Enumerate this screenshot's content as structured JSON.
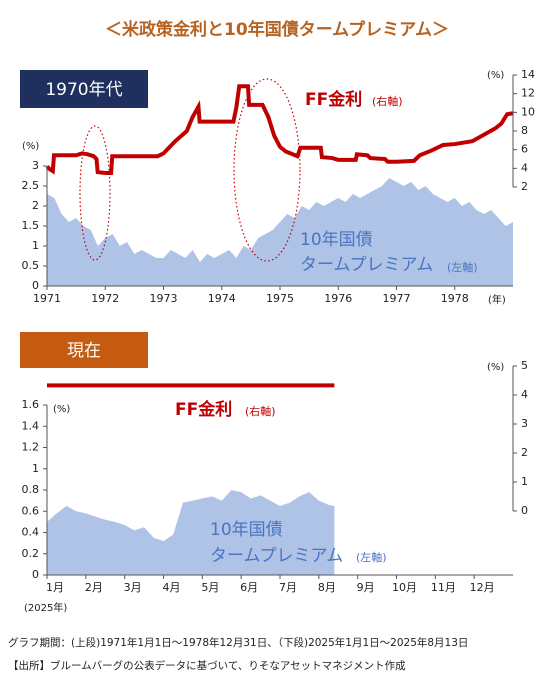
{
  "title": "＜米政策金利と10年国債タームプレミアム＞",
  "notes": [
    "グラフ期間：(上段)1971年1月1日～1978年12月31日、（下段)2025年1月1日～2025年8月13日",
    "【出所】ブルームバーグの公表データに基づいて、りそなアセットマネジメント作成"
  ],
  "chart_data": [
    {
      "type": "area_line",
      "label": "1970年代",
      "xlim": [
        1971,
        1979
      ],
      "xticks": [
        1971,
        1972,
        1973,
        1974,
        1975,
        1976,
        1977,
        1978
      ],
      "ylim": [
        0,
        3
      ],
      "yticks": [
        0,
        0.5,
        1,
        1.5,
        2,
        2.5,
        3
      ],
      "y2lim": [
        2,
        14
      ],
      "y2ticks": [
        2,
        4,
        6,
        8,
        10,
        12,
        14
      ],
      "annotations": [
        "FF金利",
        "(右軸)",
        "10年国債",
        "タームプレミアム",
        "(左軸)",
        "(%)",
        "(%)",
        "(年)"
      ],
      "series": [
        {
          "type": "area",
          "axis": "y",
          "color": "#aec3e6",
          "x": [
            1971,
            1971.125,
            1971.25,
            1971.375,
            1971.5,
            1971.625,
            1971.75,
            1971.875,
            1972,
            1972.125,
            1972.25,
            1972.375,
            1972.5,
            1972.625,
            1972.75,
            1972.875,
            1973,
            1973.125,
            1973.25,
            1973.375,
            1973.5,
            1973.625,
            1973.75,
            1973.875,
            1974,
            1974.125,
            1974.25,
            1974.375,
            1974.5,
            1974.625,
            1974.75,
            1974.875,
            1975,
            1975.125,
            1975.25,
            1975.375,
            1975.5,
            1975.625,
            1975.75,
            1975.875,
            1976,
            1976.125,
            1976.25,
            1976.375,
            1976.5,
            1976.625,
            1976.75,
            1976.875,
            1977,
            1977.125,
            1977.25,
            1977.375,
            1977.5,
            1977.625,
            1977.75,
            1977.875,
            1978,
            1978.125,
            1978.25,
            1978.375,
            1978.5,
            1978.625,
            1978.75,
            1978.875,
            1979
          ],
          "values": [
            2.3,
            2.2,
            1.8,
            1.6,
            1.7,
            1.5,
            1.4,
            1.0,
            1.2,
            1.3,
            1.0,
            1.1,
            0.8,
            0.9,
            0.8,
            0.7,
            0.7,
            0.9,
            0.8,
            0.7,
            0.9,
            0.6,
            0.8,
            0.7,
            0.8,
            0.9,
            0.7,
            1.0,
            0.9,
            1.2,
            1.3,
            1.4,
            1.6,
            1.8,
            1.7,
            2.0,
            1.9,
            2.1,
            2.0,
            2.1,
            2.2,
            2.1,
            2.3,
            2.2,
            2.3,
            2.4,
            2.5,
            2.7,
            2.6,
            2.5,
            2.6,
            2.4,
            2.5,
            2.3,
            2.2,
            2.1,
            2.2,
            2.0,
            2.1,
            1.9,
            1.8,
            1.9,
            1.7,
            1.5,
            1.6
          ]
        },
        {
          "type": "line",
          "axis": "y2",
          "color": "#c00000",
          "x": [
            1971,
            1971.05,
            1971.1,
            1971.12,
            1971.5,
            1971.6,
            1971.7,
            1971.8,
            1971.85,
            1971.87,
            1972,
            1972.1,
            1972.12,
            1972.9,
            1973,
            1973.2,
            1973.4,
            1973.5,
            1973.6,
            1973.62,
            1974.2,
            1974.25,
            1974.3,
            1974.45,
            1974.47,
            1974.7,
            1974.8,
            1974.9,
            1975,
            1975.1,
            1975.3,
            1975.35,
            1975.7,
            1975.72,
            1975.9,
            1976,
            1976.3,
            1976.32,
            1976.5,
            1976.55,
            1976.8,
            1976.85,
            1977,
            1977.3,
            1977.4,
            1977.6,
            1977.8,
            1978,
            1978.3,
            1978.5,
            1978.7,
            1978.8,
            1978.9,
            1979
          ],
          "values": [
            4.2,
            3.9,
            3.7,
            5.4,
            5.4,
            5.6,
            5.5,
            5.3,
            5.0,
            3.6,
            3.5,
            3.5,
            5.3,
            5.3,
            5.6,
            6.9,
            8.0,
            9.5,
            10.6,
            9.0,
            9.0,
            10.5,
            12.8,
            12.8,
            10.8,
            10.8,
            9.5,
            7.5,
            6.3,
            5.8,
            5.3,
            6.2,
            6.2,
            5.2,
            5.1,
            4.9,
            4.9,
            5.5,
            5.4,
            5.1,
            5.0,
            4.7,
            4.7,
            4.8,
            5.4,
            5.9,
            6.5,
            6.6,
            6.9,
            7.6,
            8.3,
            8.8,
            9.8,
            9.9
          ]
        }
      ]
    },
    {
      "type": "area_line",
      "label": "現在",
      "xlim": [
        1,
        13
      ],
      "xticks": [
        {
          "value": 1,
          "label": "1月"
        },
        {
          "value": 2,
          "label": "2月"
        },
        {
          "value": 3,
          "label": "3月"
        },
        {
          "value": 4,
          "label": "4月"
        },
        {
          "value": 5,
          "label": "5月"
        },
        {
          "value": 6,
          "label": "6月"
        },
        {
          "value": 7,
          "label": "7月"
        },
        {
          "value": 8,
          "label": "8月"
        },
        {
          "value": 9,
          "label": "9月"
        },
        {
          "value": 10,
          "label": "10月"
        },
        {
          "value": 11,
          "label": "11月"
        },
        {
          "value": 12,
          "label": "12月"
        }
      ],
      "ylim": [
        0,
        1.6
      ],
      "yticks": [
        0,
        0.2,
        0.4,
        0.6,
        0.8,
        1,
        1.2,
        1.4,
        1.6
      ],
      "y2lim": [
        0,
        5
      ],
      "y2ticks": [
        0,
        1,
        2,
        3,
        4,
        5
      ],
      "annotations": [
        "FF金利",
        "(右軸)",
        "10年国債",
        "タームプレミアム",
        "(左軸)",
        "(%)",
        "(%)",
        "(2025年)"
      ],
      "series": [
        {
          "type": "area",
          "axis": "y",
          "color": "#aec3e6",
          "x": [
            1,
            1.25,
            1.5,
            1.75,
            2,
            2.25,
            2.5,
            2.75,
            3,
            3.25,
            3.5,
            3.75,
            4,
            4.25,
            4.5,
            4.75,
            5,
            5.25,
            5.5,
            5.75,
            6,
            6.25,
            6.5,
            6.75,
            7,
            7.25,
            7.5,
            7.75,
            8,
            8.25,
            8.4
          ],
          "values": [
            0.5,
            0.58,
            0.65,
            0.6,
            0.58,
            0.55,
            0.52,
            0.5,
            0.47,
            0.42,
            0.45,
            0.35,
            0.32,
            0.38,
            0.68,
            0.7,
            0.72,
            0.74,
            0.7,
            0.8,
            0.78,
            0.72,
            0.75,
            0.7,
            0.65,
            0.68,
            0.74,
            0.78,
            0.7,
            0.66,
            0.65
          ]
        },
        {
          "type": "line",
          "axis": "y2",
          "color": "#c00000",
          "x": [
            1,
            8.4
          ],
          "values": [
            4.33,
            4.33
          ]
        }
      ]
    }
  ]
}
